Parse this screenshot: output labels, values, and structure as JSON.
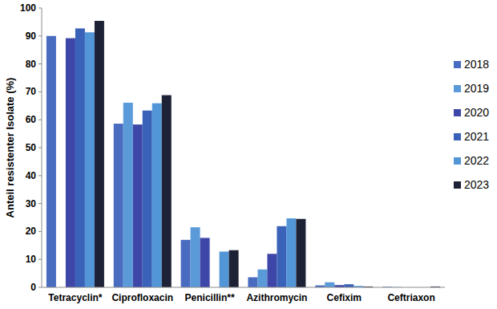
{
  "chart_data": {
    "type": "bar",
    "y_label": "Anteil resistenter Isolate (%)",
    "categories": [
      "Tetracyclin*",
      "Ciprofloxacin",
      "Penicillin**",
      "Azithromycin",
      "Cefixim",
      "Ceftriaxon"
    ],
    "series": [
      {
        "name": "2018",
        "color": "#4a6cc0",
        "values": [
          90,
          58.6,
          17,
          3.6,
          0.7,
          0.2
        ]
      },
      {
        "name": "2019",
        "color": "#5a9ad8",
        "values": [
          null,
          66.1,
          21.5,
          6.4,
          1.8,
          0.1
        ]
      },
      {
        "name": "2020",
        "color": "#3e47a8",
        "values": [
          89.2,
          58.3,
          17.7,
          12,
          0.8,
          0
        ]
      },
      {
        "name": "2021",
        "color": "#3a62b8",
        "values": [
          92.7,
          63.3,
          null,
          21.9,
          1.1,
          0
        ]
      },
      {
        "name": "2022",
        "color": "#5296d8",
        "values": [
          91.3,
          65.9,
          12.8,
          24.7,
          0.5,
          0
        ]
      },
      {
        "name": "2023",
        "color": "#1e2236",
        "values": [
          95.4,
          68.8,
          13.3,
          24.5,
          0.3,
          0.3
        ]
      }
    ],
    "ylim": [
      0,
      100
    ],
    "yticks": [
      0,
      10,
      20,
      30,
      40,
      50,
      60,
      70,
      80,
      90,
      100
    ],
    "grid": false,
    "legend": "right"
  }
}
